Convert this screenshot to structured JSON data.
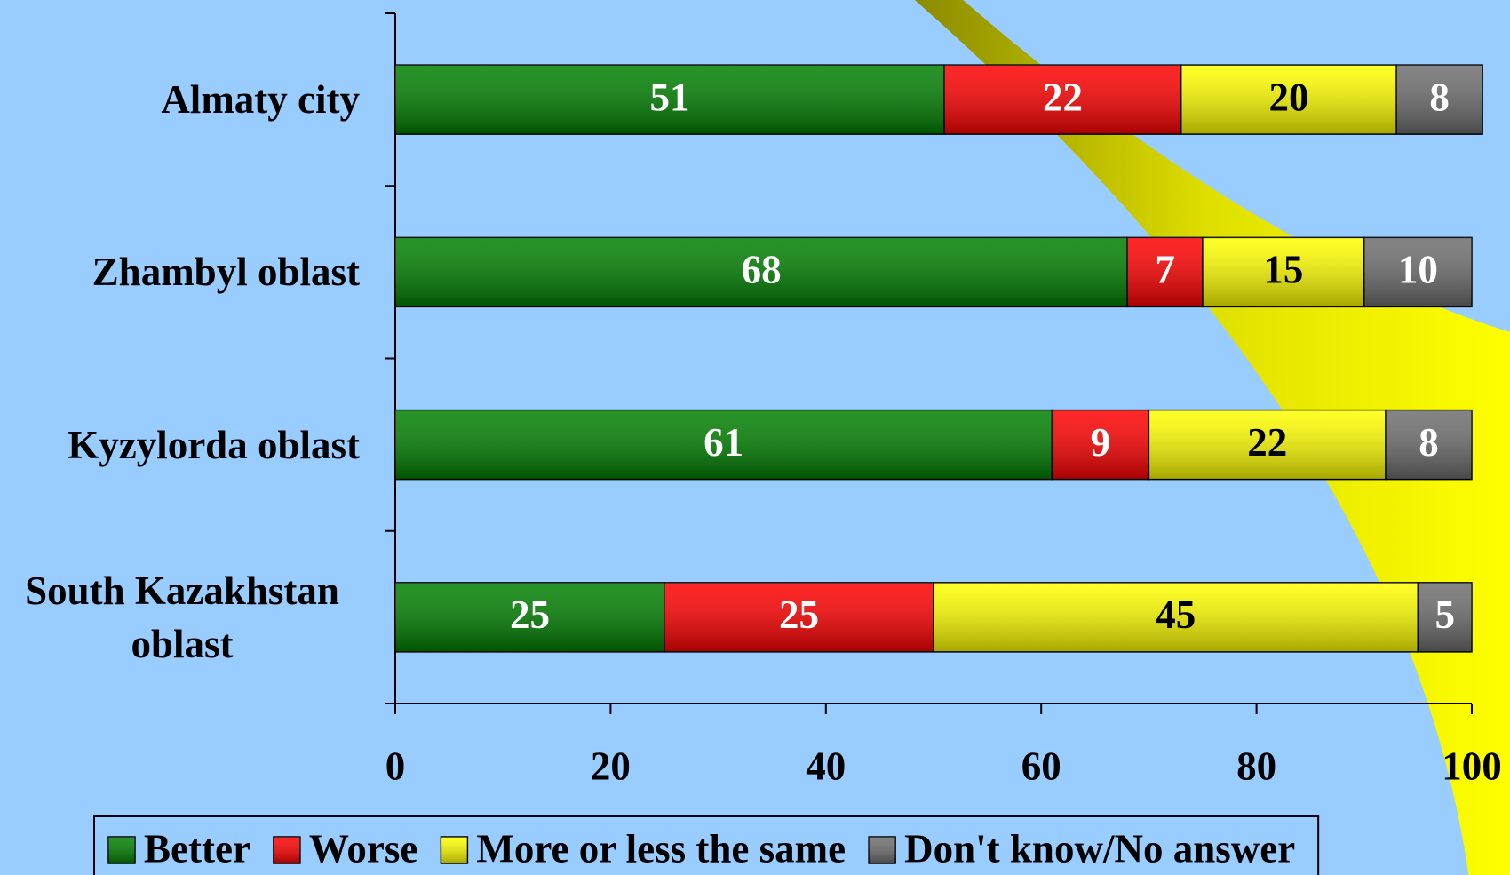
{
  "chart_data": {
    "type": "stacked_bar_horizontal",
    "categories": [
      "Almaty city",
      "Zhambyl oblast",
      "Kyzylorda oblast",
      "South Kazakhstan oblast"
    ],
    "series": [
      {
        "name": "Better",
        "color": "#008000",
        "values": [
          51,
          68,
          61,
          25
        ]
      },
      {
        "name": "Worse",
        "color": "#ff0000",
        "values": [
          22,
          7,
          9,
          25
        ]
      },
      {
        "name": "More or less the same",
        "color": "#ffff00",
        "values": [
          20,
          15,
          22,
          45
        ]
      },
      {
        "name": "Don't know/No answer",
        "color": "#6e6e6e",
        "values": [
          8,
          10,
          8,
          5
        ]
      }
    ],
    "xlim": [
      0,
      100
    ],
    "xticks": [
      0,
      20,
      40,
      60,
      80,
      100
    ],
    "legend": "bottom"
  }
}
